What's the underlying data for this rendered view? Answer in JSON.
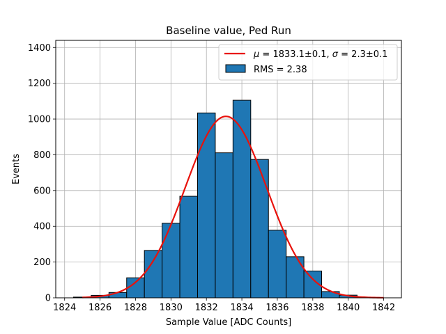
{
  "chart_data": {
    "type": "bar",
    "title": "Baseline value, Ped Run",
    "xlabel": "Sample Value [ADC Counts]",
    "ylabel": "Events",
    "xlim": [
      1823.5,
      1843.0
    ],
    "ylim": [
      0,
      1440
    ],
    "xticks": [
      1824,
      1826,
      1828,
      1830,
      1832,
      1834,
      1836,
      1838,
      1840,
      1842
    ],
    "yticks": [
      0,
      200,
      400,
      600,
      800,
      1000,
      1200,
      1400
    ],
    "grid": true,
    "legend_position": "top-right",
    "histogram": {
      "label": "RMS = 2.38",
      "color": "#1f77b4",
      "edgecolor": "#000000",
      "bin_edges": [
        1824.5,
        1825.5,
        1826.5,
        1827.5,
        1828.5,
        1829.5,
        1830.5,
        1831.5,
        1832.5,
        1833.5,
        1834.5,
        1835.5,
        1836.5,
        1837.5,
        1838.5,
        1839.5,
        1840.5,
        1841.5
      ],
      "counts": [
        4,
        14,
        30,
        112,
        265,
        417,
        568,
        1034,
        811,
        1105,
        774,
        378,
        230,
        150,
        35,
        15,
        3
      ]
    },
    "fit": {
      "label_mu_symbol": "μ",
      "label_mid": " = 1833.1±0.1, ",
      "label_sigma_symbol": "σ",
      "label_end": " = 2.3±0.1",
      "color": "#e8120c",
      "mu": 1833.1,
      "sigma": 2.3,
      "amplitude": 1015,
      "x_range": [
        1825,
        1842
      ]
    }
  }
}
